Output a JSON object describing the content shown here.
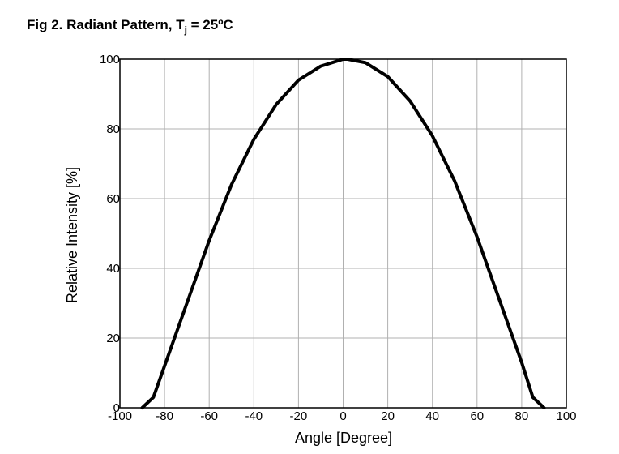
{
  "chart_data": {
    "type": "line",
    "title": [
      "Fig 2. Radiant Pattern, T",
      "j",
      " = 25ºC"
    ],
    "xlabel": "Angle [Degree]",
    "ylabel": "Relative Intensity [%]",
    "x": [
      -90,
      -85,
      -80,
      -70,
      -60,
      -50,
      -40,
      -30,
      -20,
      -10,
      0,
      2,
      10,
      20,
      30,
      40,
      50,
      60,
      70,
      80,
      85,
      90
    ],
    "series": [
      {
        "color": "#000000",
        "values": [
          0,
          3,
          12,
          30,
          48,
          64,
          77,
          87,
          94,
          98,
          100,
          100,
          99,
          95,
          88,
          78,
          65,
          49,
          31,
          13,
          3,
          0
        ]
      }
    ],
    "xlim": [
      -100,
      100
    ],
    "xticks": [
      -100,
      -80,
      -60,
      -40,
      -20,
      0,
      20,
      40,
      60,
      80,
      100
    ],
    "ylim": [
      0,
      100
    ],
    "yticks": [
      0,
      20,
      40,
      60,
      80,
      100
    ],
    "grid": true
  }
}
